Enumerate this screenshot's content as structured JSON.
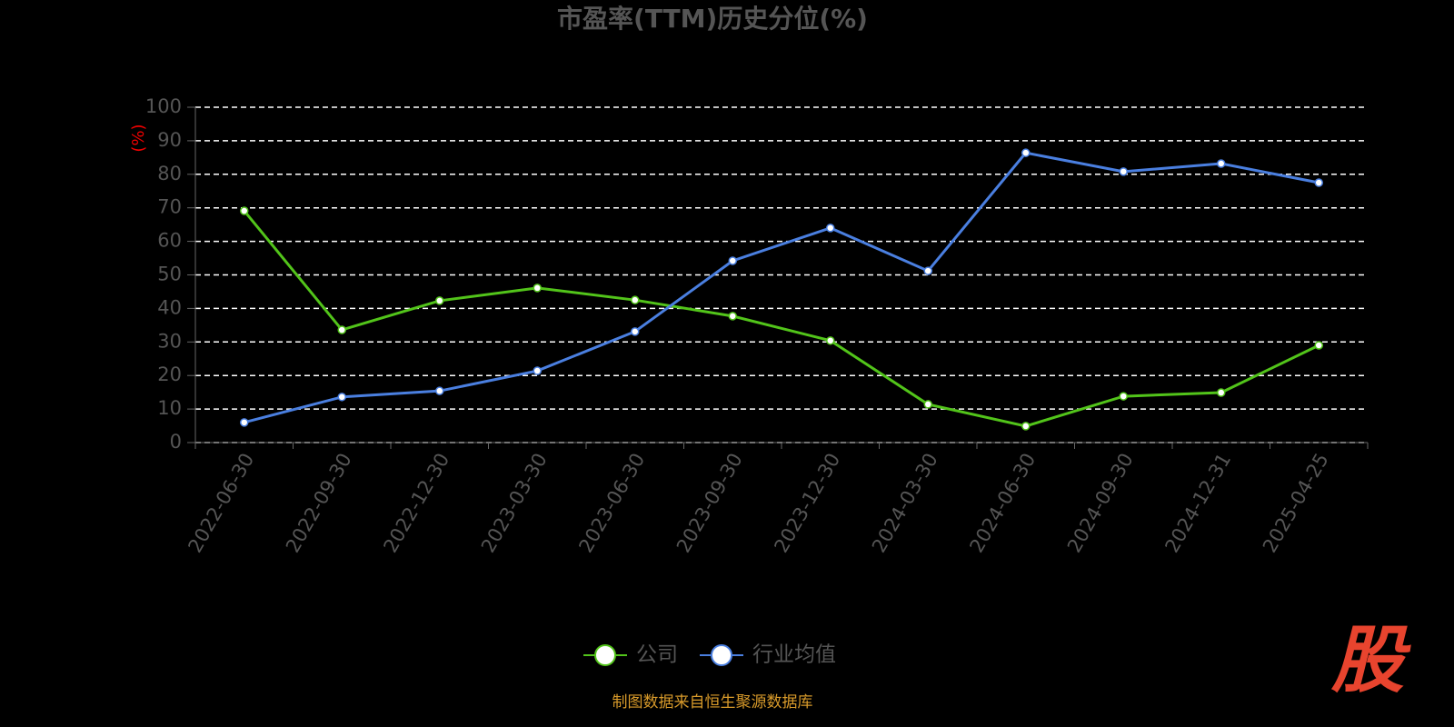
{
  "chart_data": {
    "type": "line",
    "title": "市盈率(TTM)历史分位(%)",
    "y_label": "(%)",
    "categories": [
      "2022-06-30",
      "2022-09-30",
      "2022-12-30",
      "2023-03-30",
      "2023-06-30",
      "2023-09-30",
      "2023-12-30",
      "2024-03-30",
      "2024-06-30",
      "2024-09-30",
      "2024-12-31",
      "2025-04-25"
    ],
    "series": [
      {
        "name": "公司",
        "color": "#52c41a",
        "values": [
          69.1,
          33.6,
          42.3,
          46.1,
          42.5,
          37.7,
          30.4,
          11.4,
          4.9,
          13.8,
          14.9,
          29.0
        ]
      },
      {
        "name": "行业均值",
        "color": "#4a7fe0",
        "values": [
          6.0,
          13.6,
          15.4,
          21.4,
          33.1,
          54.2,
          64.0,
          51.2,
          86.4,
          80.8,
          83.2,
          77.5
        ]
      }
    ],
    "ylim": [
      0,
      100
    ],
    "yticks": [
      0,
      10,
      20,
      30,
      40,
      50,
      60,
      70,
      80,
      90,
      100
    ],
    "grid": true,
    "legend": "bottom",
    "source": "制图数据来自恒生聚源数据库",
    "logo": "股"
  }
}
